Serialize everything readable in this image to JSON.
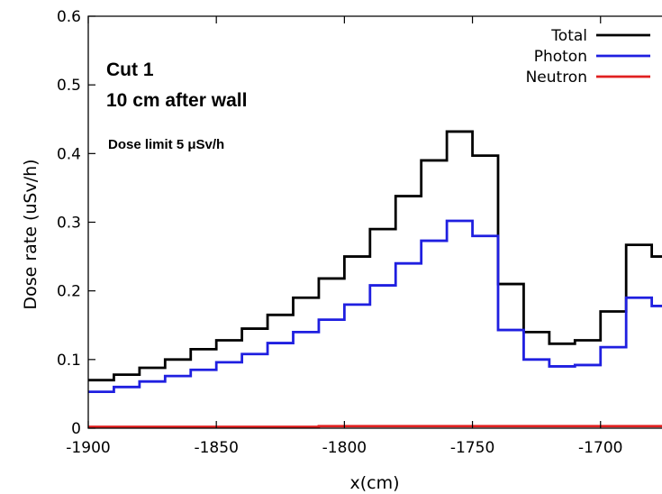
{
  "chart_data": {
    "type": "line",
    "step": true,
    "xlabel": "x(cm)",
    "ylabel": "Dose rate (uSv/h)",
    "xlim": [
      -1900,
      -1676
    ],
    "ylim": [
      0,
      0.6
    ],
    "xticks": [
      -1900,
      -1850,
      -1800,
      -1750,
      -1700
    ],
    "yticks": [
      0,
      0.1,
      0.2,
      0.3,
      0.4,
      0.5,
      0.6
    ],
    "xtick_labels": [
      "-1900",
      "-1850",
      "-1800",
      "-1750",
      "-1700"
    ],
    "ytick_labels": [
      "0",
      "0.1",
      "0.2",
      "0.3",
      "0.4",
      "0.5",
      "0.6"
    ],
    "grid": false,
    "legend_position": "top-right",
    "annotations": [
      "Cut 1",
      "10 cm after wall",
      "Dose limit 5 μSv/h"
    ],
    "x_edges": [
      -1900,
      -1890,
      -1880,
      -1870,
      -1860,
      -1850,
      -1840,
      -1830,
      -1820,
      -1810,
      -1800,
      -1790,
      -1780,
      -1770,
      -1760,
      -1750,
      -1740,
      -1730,
      -1720,
      -1710,
      -1700,
      -1690,
      -1680,
      -1676
    ],
    "series": [
      {
        "name": "Total",
        "color": "#000000",
        "values": [
          0.07,
          0.078,
          0.088,
          0.1,
          0.115,
          0.128,
          0.145,
          0.165,
          0.19,
          0.218,
          0.25,
          0.29,
          0.338,
          0.39,
          0.432,
          0.397,
          0.21,
          0.14,
          0.123,
          0.128,
          0.17,
          0.267,
          0.25
        ]
      },
      {
        "name": "Photon",
        "color": "#1f1fe0",
        "values": [
          0.053,
          0.06,
          0.068,
          0.076,
          0.085,
          0.096,
          0.108,
          0.124,
          0.14,
          0.158,
          0.18,
          0.208,
          0.24,
          0.273,
          0.302,
          0.28,
          0.143,
          0.1,
          0.09,
          0.092,
          0.118,
          0.19,
          0.178
        ]
      },
      {
        "name": "Neutron",
        "color": "#e02020",
        "values": [
          0.002,
          0.002,
          0.002,
          0.002,
          0.002,
          0.002,
          0.002,
          0.002,
          0.002,
          0.003,
          0.003,
          0.003,
          0.003,
          0.003,
          0.003,
          0.003,
          0.003,
          0.003,
          0.003,
          0.003,
          0.003,
          0.003,
          0.003
        ]
      }
    ]
  }
}
